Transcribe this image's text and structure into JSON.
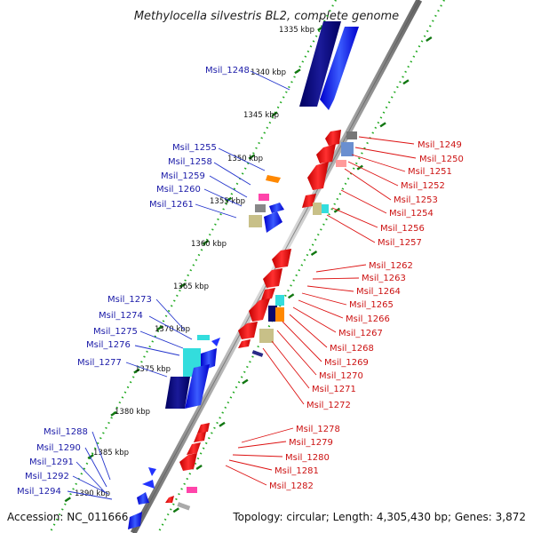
{
  "title": "Methylocella silvestris BL2, complete genome",
  "accession": "Accession: NC_011666",
  "summary": "Topology: circular; Length: 4,305,430 bp; Genes: 3,872",
  "kbp_labels": [
    "1335 kbp",
    "1340 kbp",
    "1345 kbp",
    "1350 kbp",
    "1355 kbp",
    "1360 kbp",
    "1365 kbp",
    "1370 kbp",
    "1375 kbp",
    "1380 kbp",
    "1385 kbp",
    "1390 kbp"
  ],
  "genes_left": [
    "Msil_1248",
    "Msil_1255",
    "Msil_1258",
    "Msil_1259",
    "Msil_1260",
    "Msil_1261",
    "Msil_1273",
    "Msil_1274",
    "Msil_1275",
    "Msil_1276",
    "Msil_1277",
    "Msil_1288",
    "Msil_1290",
    "Msil_1291",
    "Msil_1292",
    "Msil_1294"
  ],
  "genes_right": [
    "Msil_1249",
    "Msil_1250",
    "Msil_1251",
    "Msil_1252",
    "Msil_1253",
    "Msil_1254",
    "Msil_1256",
    "Msil_1257",
    "Msil_1262",
    "Msil_1263",
    "Msil_1264",
    "Msil_1265",
    "Msil_1266",
    "Msil_1267",
    "Msil_1268",
    "Msil_1269",
    "Msil_1270",
    "Msil_1271",
    "Msil_1272",
    "Msil_1278",
    "Msil_1279",
    "Msil_1280",
    "Msil_1281",
    "Msil_1282"
  ],
  "colors": {
    "plus_strand": "#1a1aa8",
    "minus_strand": "#cc1111",
    "backbone": "#888888",
    "dots": "#22aa22",
    "dark_block": "#0a0a6e",
    "cyan_block": "#33dddd",
    "khaki_block": "#c8c088",
    "orange_block": "#ff8800",
    "pink_block": "#ff44aa",
    "grey_block": "#777777"
  }
}
